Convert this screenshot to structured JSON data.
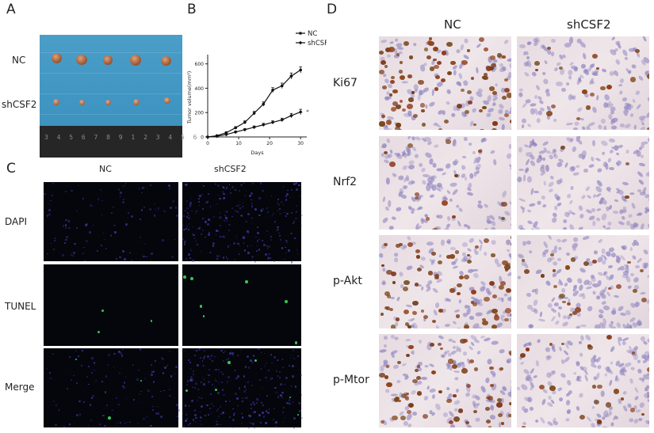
{
  "panels": {
    "A": {
      "letter": "A",
      "row_labels": [
        "NC",
        "shCSF2"
      ],
      "ruler_text": "3 4 5 6 7 8 9 1 2 3 4 5 6"
    },
    "B": {
      "letter": "B",
      "legend": [
        "NC",
        "shCSF2"
      ],
      "significance": "*"
    },
    "C": {
      "letter": "C",
      "col_labels": [
        "NC",
        "shCSF2"
      ],
      "row_labels": [
        "DAPI",
        "TUNEL",
        "Merge"
      ]
    },
    "D": {
      "letter": "D",
      "col_labels": [
        "NC",
        "shCSF2"
      ],
      "row_labels": [
        "Ki67",
        "Nrf2",
        "p-Akt",
        "p-Mtor"
      ]
    }
  },
  "chart_data": {
    "type": "line",
    "ylabel": "Tumor volume(mm³)",
    "xlabel": "Days",
    "x": [
      0,
      3,
      6,
      9,
      12,
      15,
      18,
      21,
      24,
      27,
      30
    ],
    "xticks": [
      0,
      10,
      20,
      30
    ],
    "yticks": [
      0,
      200,
      400,
      600
    ],
    "xlim": [
      0,
      32
    ],
    "ylim": [
      0,
      650
    ],
    "series": [
      {
        "name": "NC",
        "values": [
          0,
          10,
          35,
          75,
          120,
          195,
          270,
          385,
          420,
          500,
          550
        ],
        "error": [
          5,
          6,
          8,
          10,
          12,
          15,
          18,
          20,
          22,
          25,
          25
        ]
      },
      {
        "name": "shCSF2",
        "values": [
          0,
          6,
          20,
          40,
          60,
          80,
          100,
          120,
          140,
          175,
          205
        ],
        "error": [
          4,
          4,
          6,
          8,
          8,
          10,
          12,
          12,
          14,
          18,
          22
        ]
      }
    ],
    "grid": false,
    "legend_position": "top-right"
  }
}
